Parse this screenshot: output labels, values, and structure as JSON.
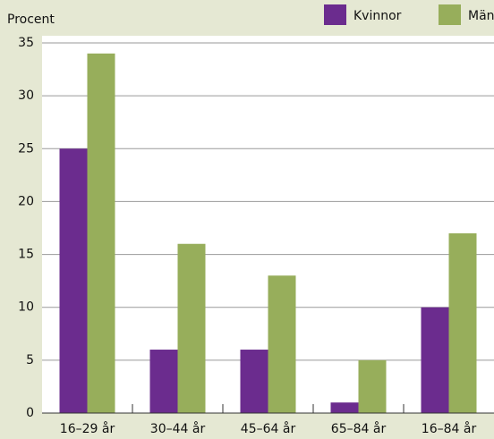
{
  "chart_data": {
    "type": "bar",
    "y_label": "Procent",
    "categories": [
      "16–29 år",
      "30–44 år",
      "45–64 år",
      "65–84 år",
      "16–84 år"
    ],
    "series": [
      {
        "name": "Kvinnor",
        "color": "#6b2c8e",
        "values": [
          25,
          6,
          6,
          1,
          10
        ]
      },
      {
        "name": "Män",
        "color": "#97ae5b",
        "values": [
          34,
          16,
          13,
          5,
          17
        ]
      }
    ],
    "ylim": [
      0,
      35
    ],
    "yticks": [
      0,
      5,
      10,
      15,
      20,
      25,
      30,
      35
    ],
    "grid": true,
    "legend": "top"
  }
}
